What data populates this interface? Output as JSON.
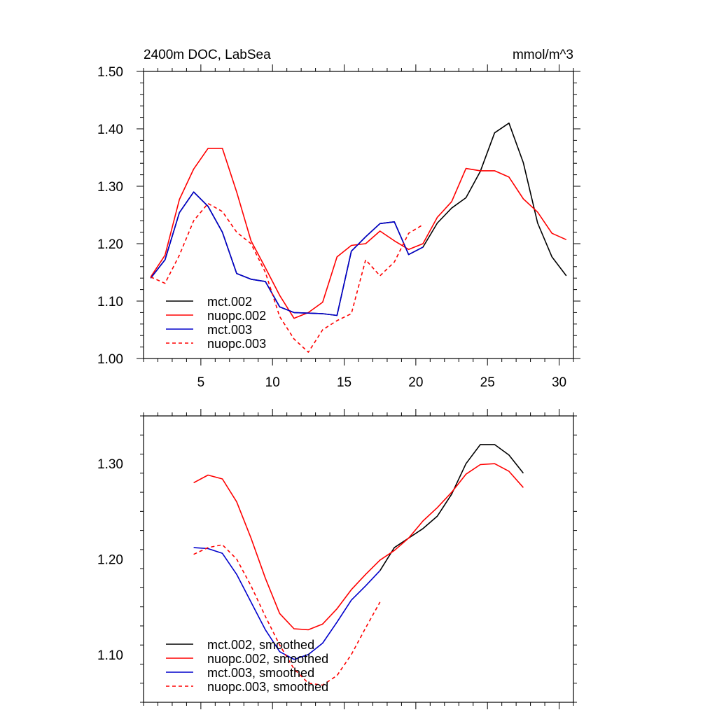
{
  "chart_data": [
    {
      "type": "line",
      "title_left": "2400m DOC, LabSea",
      "title_right": "mmol/m^3",
      "xlim": [
        1,
        31
      ],
      "ylim": [
        1.0,
        1.5
      ],
      "xticks": [
        5,
        10,
        15,
        20,
        25,
        30
      ],
      "xtick_labels": [
        "5",
        "10",
        "15",
        "20",
        "25",
        "30"
      ],
      "yticks": [
        1.0,
        1.1,
        1.2,
        1.3,
        1.4,
        1.5
      ],
      "ytick_labels": [
        "1.00",
        "1.10",
        "1.20",
        "1.30",
        "1.40",
        "1.50"
      ],
      "legend_position": "bottom-left",
      "series": [
        {
          "name": "mct.002",
          "color": "#000000",
          "dash": "solid",
          "x": [
            1.5,
            2.5,
            3.5,
            4.5,
            5.5,
            6.5,
            7.5,
            8.5,
            9.5,
            10.5,
            11.5,
            12.5,
            13.5,
            14.5,
            15.5,
            16.5,
            17.5,
            18.5,
            19.5,
            20.5,
            21.5,
            22.5,
            23.5,
            24.5,
            25.5,
            26.5,
            27.5,
            28.5,
            29.5,
            30.5
          ],
          "y": [
            1.14,
            1.172,
            1.254,
            1.29,
            1.265,
            1.22,
            1.148,
            1.138,
            1.134,
            1.09,
            1.08,
            1.079,
            1.078,
            1.075,
            1.187,
            1.212,
            1.235,
            1.238,
            1.181,
            1.194,
            1.236,
            1.262,
            1.28,
            1.326,
            1.393,
            1.41,
            1.341,
            1.236,
            1.177,
            1.144
          ]
        },
        {
          "name": "nuopc.002",
          "color": "#ff0000",
          "dash": "solid",
          "x": [
            1.5,
            2.5,
            3.5,
            4.5,
            5.5,
            6.5,
            7.5,
            8.5,
            9.5,
            10.5,
            11.5,
            12.5,
            13.5,
            14.5,
            15.5,
            16.5,
            17.5,
            18.5,
            19.5,
            20.5,
            21.5,
            22.5,
            23.5,
            24.5,
            25.5,
            26.5,
            27.5,
            28.5,
            29.5,
            30.5
          ],
          "y": [
            1.142,
            1.18,
            1.277,
            1.33,
            1.366,
            1.366,
            1.29,
            1.205,
            1.158,
            1.11,
            1.07,
            1.08,
            1.098,
            1.177,
            1.197,
            1.2,
            1.222,
            1.205,
            1.19,
            1.2,
            1.246,
            1.273,
            1.331,
            1.327,
            1.327,
            1.316,
            1.278,
            1.255,
            1.218,
            1.207
          ]
        },
        {
          "name": "mct.003",
          "color": "#0000cc",
          "dash": "solid",
          "x": [
            1.5,
            2.5,
            3.5,
            4.5,
            5.5,
            6.5,
            7.5,
            8.5,
            9.5,
            10.5,
            11.5,
            12.5,
            13.5,
            14.5,
            15.5,
            16.5,
            17.5,
            18.5,
            19.5,
            20.5
          ],
          "y": [
            1.14,
            1.172,
            1.254,
            1.29,
            1.265,
            1.22,
            1.148,
            1.138,
            1.134,
            1.09,
            1.08,
            1.079,
            1.078,
            1.075,
            1.187,
            1.212,
            1.235,
            1.238,
            1.181,
            1.194
          ]
        },
        {
          "name": "nuopc.003",
          "color": "#ff0000",
          "dash": "dashed",
          "x": [
            1.5,
            2.5,
            3.5,
            4.5,
            5.5,
            6.5,
            7.5,
            8.5,
            9.5,
            10.5,
            11.5,
            12.5,
            13.5,
            14.5,
            15.5,
            16.5,
            17.5,
            18.5,
            19.5,
            20.5
          ],
          "y": [
            1.142,
            1.131,
            1.18,
            1.24,
            1.27,
            1.256,
            1.22,
            1.2,
            1.15,
            1.073,
            1.034,
            1.011,
            1.05,
            1.066,
            1.078,
            1.172,
            1.144,
            1.168,
            1.218,
            1.233
          ]
        }
      ]
    },
    {
      "type": "line",
      "xlim": [
        1,
        31
      ],
      "ylim": [
        1.05,
        1.35
      ],
      "xticks": [
        5,
        10,
        15,
        20,
        25,
        30
      ],
      "yticks": [
        1.1,
        1.2,
        1.3
      ],
      "ytick_labels": [
        "1.10",
        "1.20",
        "1.30"
      ],
      "legend_position": "bottom-left",
      "series": [
        {
          "name": "mct.002, smoothed",
          "color": "#000000",
          "dash": "solid",
          "x": [
            17.5,
            18.5,
            19.5,
            20.5,
            21.5,
            22.5,
            23.5,
            24.5,
            25.5,
            26.5,
            27.5
          ],
          "y": [
            1.188,
            1.212,
            1.222,
            1.232,
            1.245,
            1.268,
            1.3,
            1.32,
            1.32,
            1.309,
            1.29
          ]
        },
        {
          "name": "nuopc.002, smoothed",
          "color": "#ff0000",
          "dash": "solid",
          "x": [
            4.5,
            5.5,
            6.5,
            7.5,
            8.5,
            9.5,
            10.5,
            11.5,
            12.5,
            13.5,
            14.5,
            15.5,
            16.5,
            17.5,
            18.5,
            19.5,
            20.5,
            21.5,
            22.5,
            23.5,
            24.5,
            25.5,
            26.5,
            27.5
          ],
          "y": [
            1.28,
            1.288,
            1.284,
            1.26,
            1.222,
            1.18,
            1.143,
            1.127,
            1.126,
            1.132,
            1.148,
            1.168,
            1.184,
            1.199,
            1.209,
            1.222,
            1.24,
            1.254,
            1.27,
            1.289,
            1.299,
            1.3,
            1.292,
            1.275
          ]
        },
        {
          "name": "mct.003, smoothed",
          "color": "#0000cc",
          "dash": "solid",
          "x": [
            4.5,
            5.5,
            6.5,
            7.5,
            8.5,
            9.5,
            10.5,
            11.5,
            12.5,
            13.5,
            14.5,
            15.5,
            16.5,
            17.5
          ],
          "y": [
            1.212,
            1.211,
            1.206,
            1.184,
            1.155,
            1.126,
            1.103,
            1.095,
            1.1,
            1.112,
            1.134,
            1.157,
            1.172,
            1.188
          ]
        },
        {
          "name": "nuopc.003, smoothed",
          "color": "#ff0000",
          "dash": "dashed",
          "x": [
            4.5,
            5.5,
            6.5,
            7.5,
            8.5,
            9.5,
            10.5,
            11.5,
            12.5,
            13.5,
            14.5,
            15.5,
            16.5,
            17.5
          ],
          "y": [
            1.205,
            1.212,
            1.215,
            1.2,
            1.172,
            1.14,
            1.11,
            1.085,
            1.07,
            1.068,
            1.078,
            1.1,
            1.128,
            1.155
          ]
        }
      ]
    }
  ]
}
